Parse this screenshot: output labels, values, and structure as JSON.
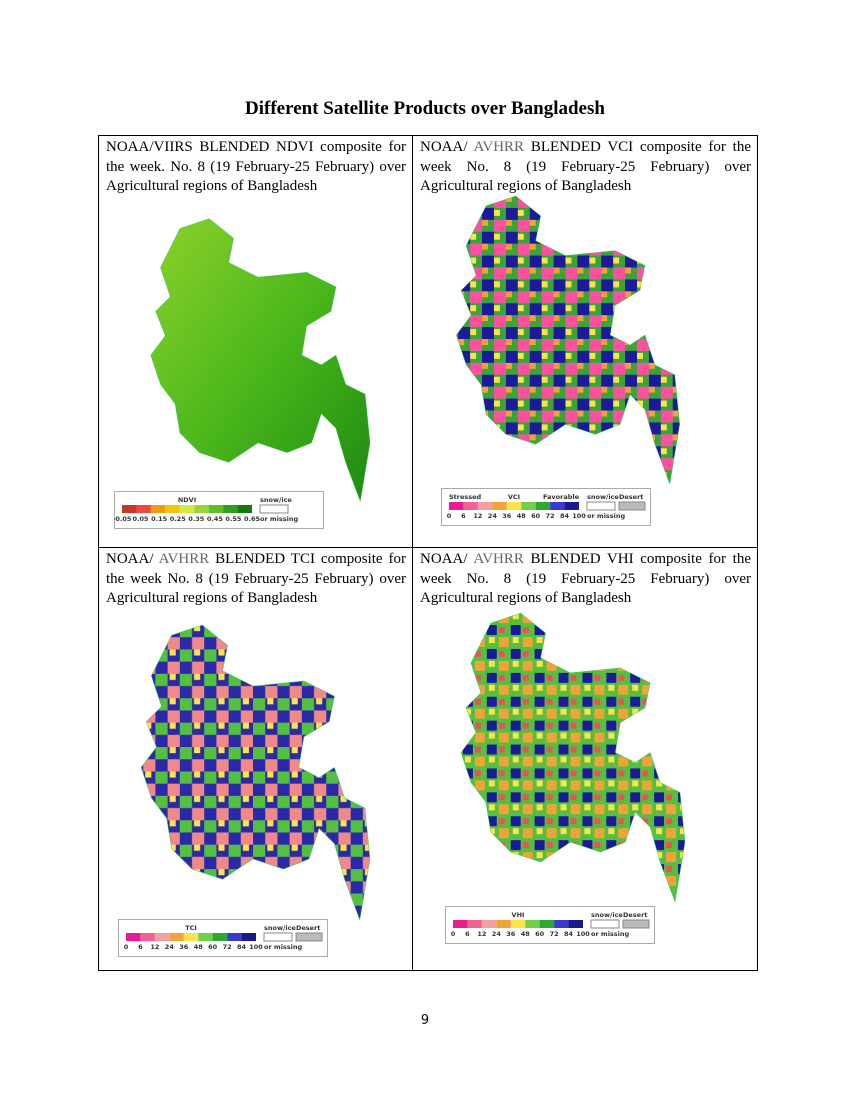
{
  "title": "Different Satellite Products over Bangladesh",
  "cells": [
    {
      "caption": [
        "NOAA/VIIRS BLENDED NDVI composite for the week. No. 8 (19 February-25 February) over Agricultural regions of Bangladesh"
      ],
      "legend": {
        "title": "NDVI",
        "ticks": [
          "-0.05",
          "0.05",
          "0.15",
          "0.25",
          "0.35",
          "0.45",
          "0.55",
          "0.65"
        ],
        "snow": "snow/ice",
        "missing": "or missing"
      }
    },
    {
      "caption": [
        "NOAA/ ",
        "AVHRR",
        " BLENDED VCI composite for the week No. 8 (19 February-25 February) over Agricultural regions of Bangladesh"
      ],
      "legend": {
        "left": "Stressed",
        "title": "VCI",
        "right": "Favorable",
        "ticks": [
          0,
          6,
          12,
          24,
          36,
          48,
          60,
          72,
          84,
          100
        ],
        "snow": "snow/ice",
        "missing": "or missing",
        "desert": "Desert"
      }
    },
    {
      "caption": [
        "NOAA/ ",
        "AVHRR",
        " BLENDED TCI composite for the week No. 8 (19 February-25 February) over Agricultural regions of Bangladesh"
      ],
      "legend": {
        "title": "TCI",
        "ticks": [
          0,
          6,
          12,
          24,
          36,
          48,
          60,
          72,
          84,
          100
        ],
        "snow": "snow/ice",
        "missing": "or missing",
        "desert": "Desert"
      }
    },
    {
      "caption": [
        "NOAA/ ",
        "AVHRR",
        " BLENDED VHI composite for the week No. 8 (19 February-25 February) over Agricultural regions of Bangladesh"
      ],
      "legend": {
        "title": "VHI",
        "ticks": [
          0,
          6,
          12,
          24,
          36,
          48,
          60,
          72,
          84,
          100
        ],
        "snow": "snow/ice",
        "missing": "or missing",
        "desert": "Desert"
      }
    }
  ],
  "page_number": "9"
}
